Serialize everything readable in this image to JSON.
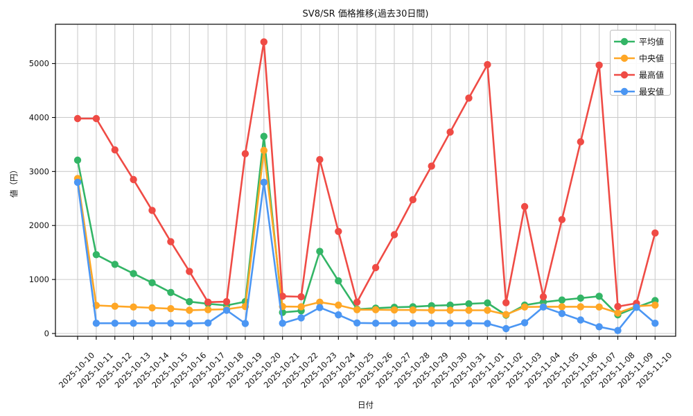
{
  "chart_data": {
    "type": "line",
    "title": "SV8/SR 価格推移(過去30日間)",
    "xlabel": "日付",
    "ylabel": "値（円）",
    "grid": true,
    "legend_position": "upper right",
    "y_ticks": [
      0,
      1000,
      2000,
      3000,
      4000,
      5000
    ],
    "ylim": [
      -50,
      5730
    ],
    "x": [
      "2025-10-10",
      "2025-10-11",
      "2025-10-12",
      "2025-10-13",
      "2025-10-14",
      "2025-10-15",
      "2025-10-16",
      "2025-10-17",
      "2025-10-18",
      "2025-10-19",
      "2025-10-20",
      "2025-10-21",
      "2025-10-22",
      "2025-10-23",
      "2025-10-24",
      "2025-10-25",
      "2025-10-26",
      "2025-10-27",
      "2025-10-28",
      "2025-10-29",
      "2025-10-30",
      "2025-10-31",
      "2025-11-01",
      "2025-11-02",
      "2025-11-03",
      "2025-11-04",
      "2025-11-05",
      "2025-11-06",
      "2025-11-07",
      "2025-11-08",
      "2025-11-09",
      "2025-11-10"
    ],
    "series": [
      {
        "key": "mean",
        "name": "平均値",
        "color": "#33b566",
        "values": [
          3210,
          1460,
          1280,
          1110,
          940,
          760,
          590,
          550,
          520,
          590,
          3650,
          390,
          420,
          1520,
          975,
          450,
          470,
          485,
          495,
          515,
          525,
          550,
          565,
          340,
          525,
          580,
          620,
          655,
          690,
          345,
          485,
          610
        ]
      },
      {
        "key": "median",
        "name": "中央値",
        "color": "#ffa726",
        "values": [
          2870,
          520,
          505,
          490,
          475,
          460,
          430,
          440,
          450,
          500,
          3390,
          500,
          495,
          580,
          525,
          440,
          440,
          435,
          435,
          430,
          430,
          430,
          430,
          350,
          490,
          495,
          495,
          495,
          490,
          380,
          505,
          525
        ]
      },
      {
        "key": "max",
        "name": "最高値",
        "color": "#ef4b45",
        "values": [
          3980,
          3980,
          3400,
          2850,
          2280,
          1700,
          1150,
          580,
          590,
          3330,
          5400,
          690,
          680,
          3220,
          1890,
          580,
          1220,
          1830,
          2480,
          3100,
          3730,
          4360,
          4980,
          570,
          2350,
          680,
          2110,
          3550,
          4970,
          500,
          560,
          1860
        ]
      },
      {
        "key": "min",
        "name": "最安値",
        "color": "#4b96f3",
        "values": [
          2800,
          190,
          190,
          190,
          190,
          190,
          185,
          195,
          430,
          185,
          2800,
          190,
          290,
          480,
          345,
          195,
          190,
          190,
          190,
          190,
          190,
          190,
          185,
          90,
          200,
          490,
          370,
          250,
          125,
          55,
          485,
          190
        ]
      }
    ],
    "colors": {
      "grid": "#cccccc",
      "spine": "#000000",
      "text": "#111111",
      "legend_border": "#bbbbbb"
    }
  }
}
